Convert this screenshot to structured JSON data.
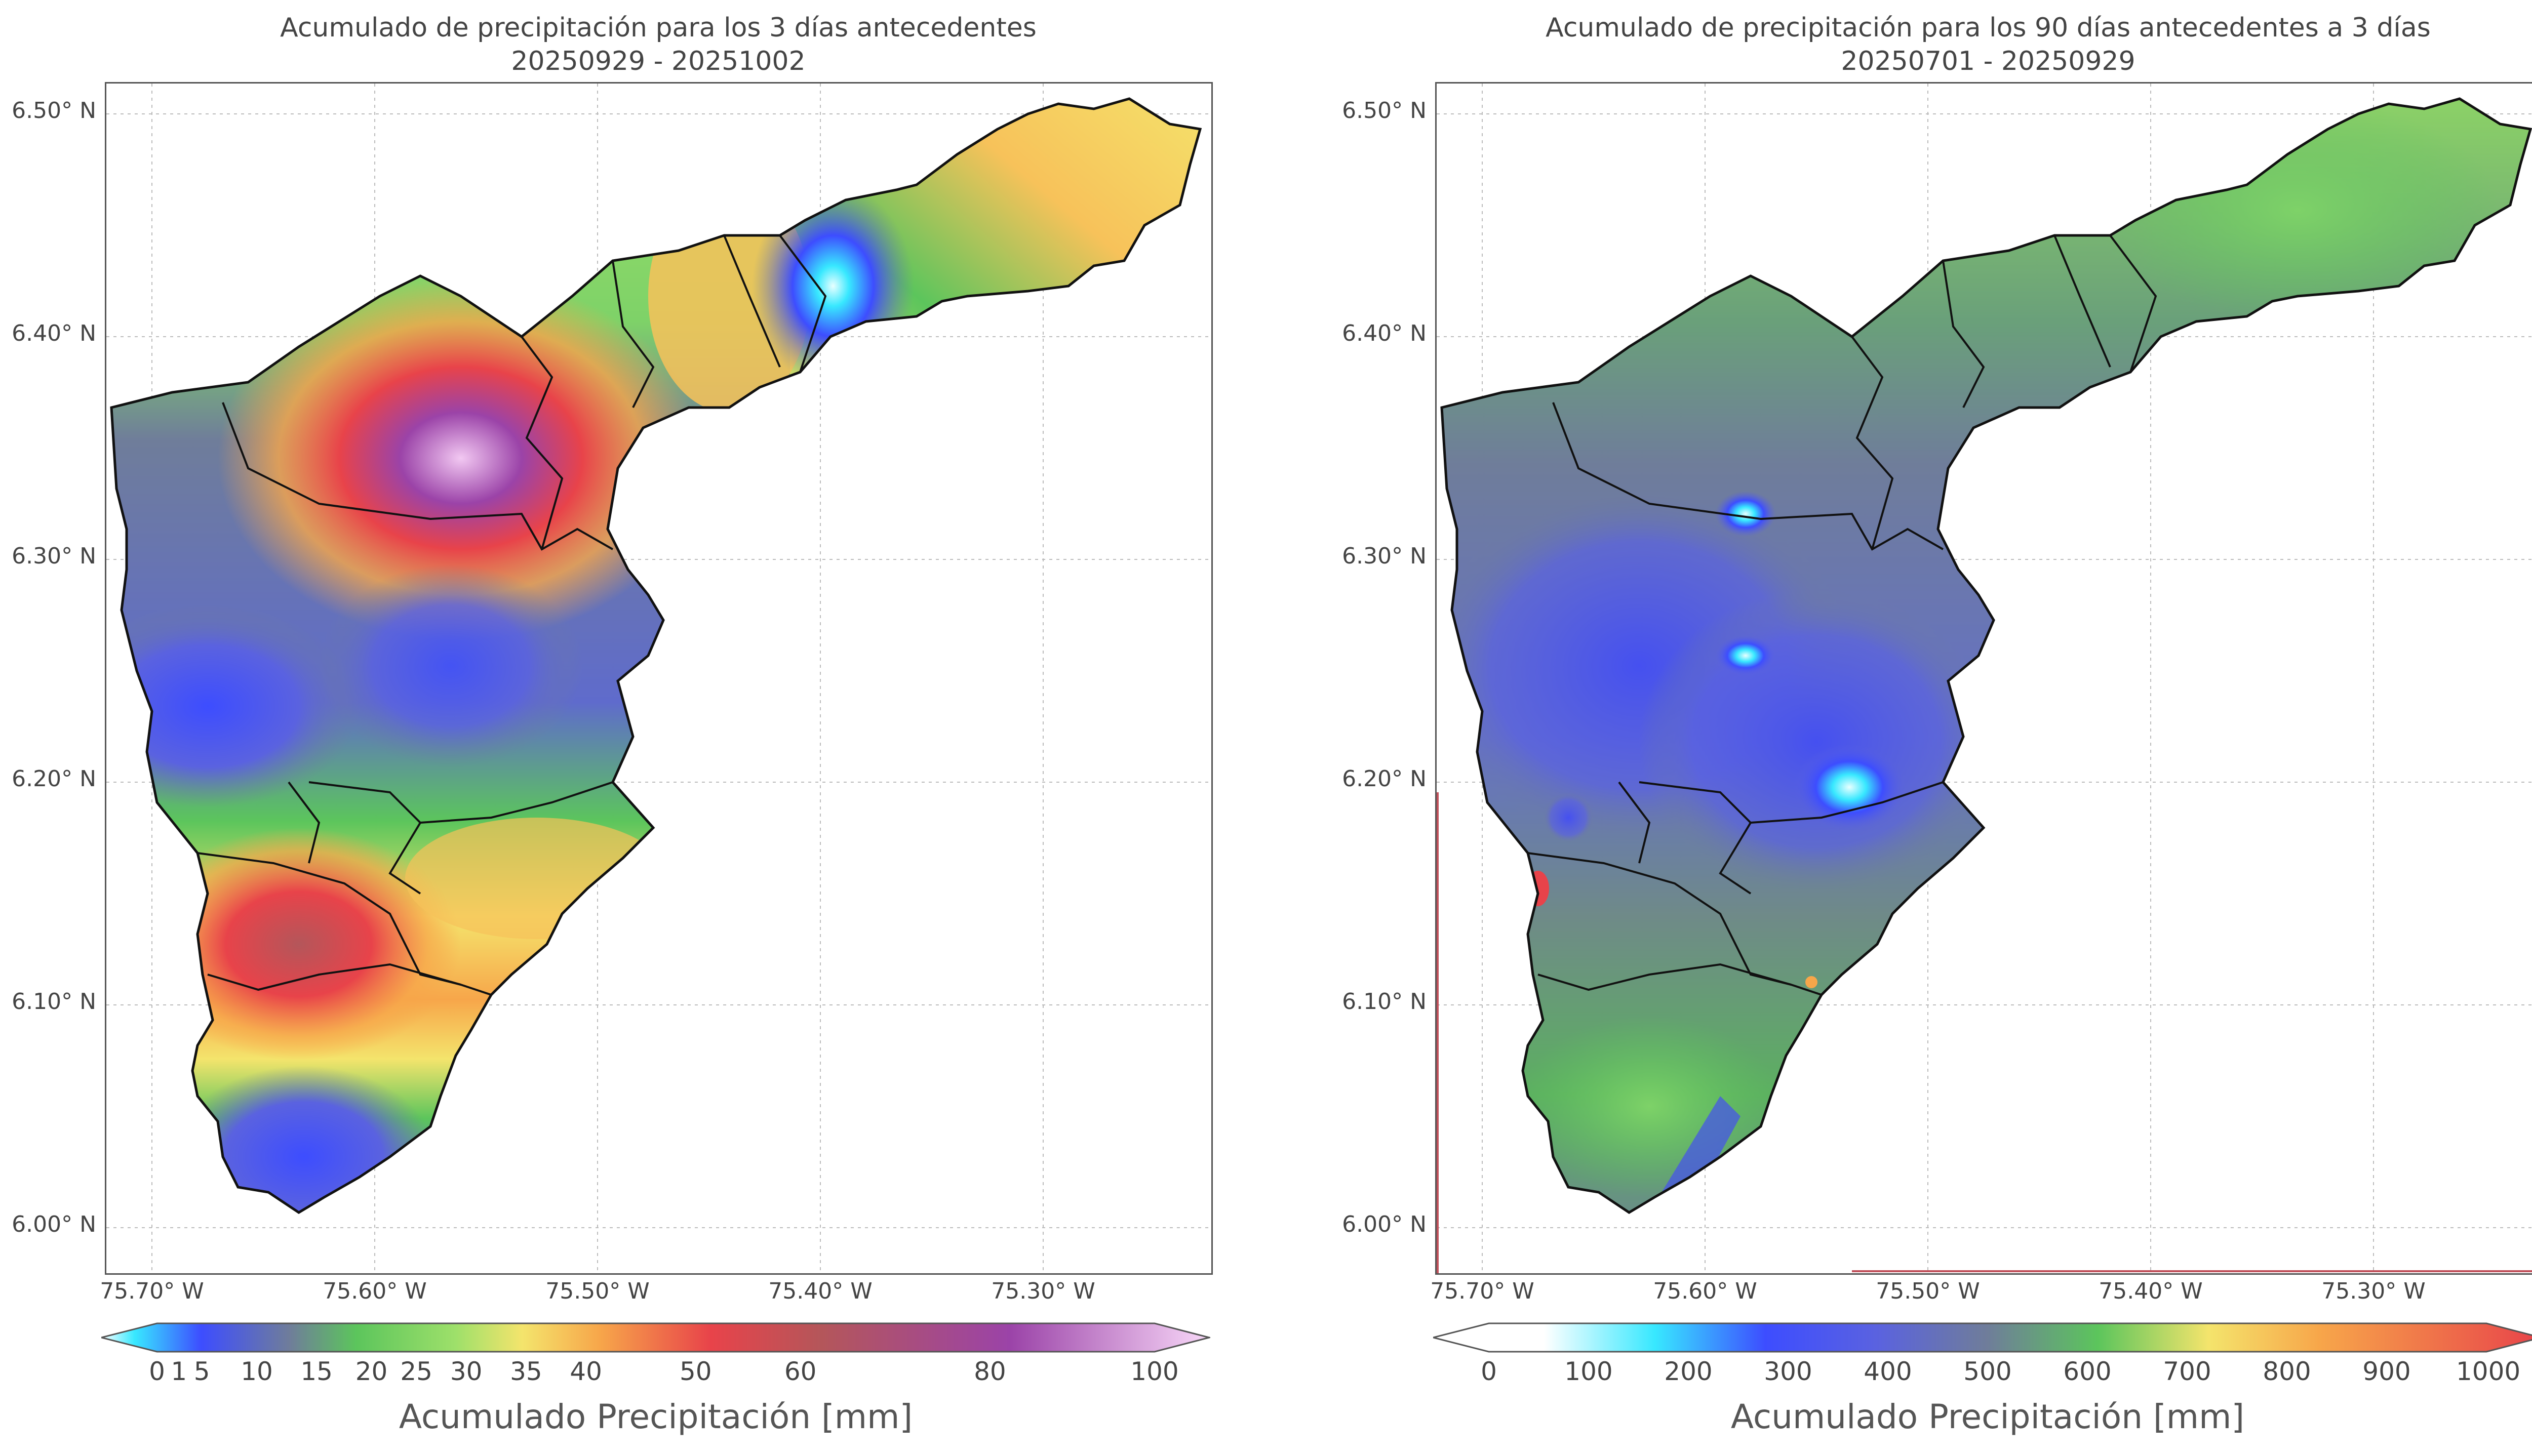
{
  "panels": [
    {
      "title_line1": "Acumulado de precipitación para los 3 días antecedentes",
      "title_line2": "20250929 - 20251002",
      "y_ticks": [
        "6.50° N",
        "6.40° N",
        "6.30° N",
        "6.20° N",
        "6.10° N",
        "6.00° N"
      ],
      "x_ticks": [
        "75.70° W",
        "75.60° W",
        "75.50° W",
        "75.40° W",
        "75.30° W"
      ],
      "colorbar_label": "Acumulado Precipitación [mm]",
      "colorbar_ticks": [
        "0",
        "1",
        "5",
        "10",
        "15",
        "20",
        "25",
        "30",
        "35",
        "40",
        "50",
        "60",
        "80",
        "100"
      ],
      "colorbar_range": [
        0,
        100
      ]
    },
    {
      "title_line1": "Acumulado de precipitación para los 90 días antecedentes a 3 días",
      "title_line2": "20250701 - 20250929",
      "y_ticks": [
        "6.50° N",
        "6.40° N",
        "6.30° N",
        "6.20° N",
        "6.10° N",
        "6.00° N"
      ],
      "x_ticks": [
        "75.70° W",
        "75.60° W",
        "75.50° W",
        "75.40° W",
        "75.30° W"
      ],
      "colorbar_label": "Acumulado Precipitación [mm]",
      "colorbar_ticks": [
        "0",
        "100",
        "200",
        "300",
        "400",
        "500",
        "600",
        "700",
        "800",
        "900",
        "1000"
      ],
      "colorbar_range": [
        0,
        1000
      ]
    }
  ],
  "colors": {
    "white": "#ffffff",
    "cyan": "#38e8ff",
    "blue": "#3d4dff",
    "slate": "#6f7d9a",
    "green": "#5cc55c",
    "lightgreen": "#9ee06a",
    "yellow": "#f4e46c",
    "orange": "#f7a64a",
    "red": "#e8434a",
    "brown": "#b4565a",
    "purple": "#9b43a8",
    "pink": "#f2c8f2"
  }
}
